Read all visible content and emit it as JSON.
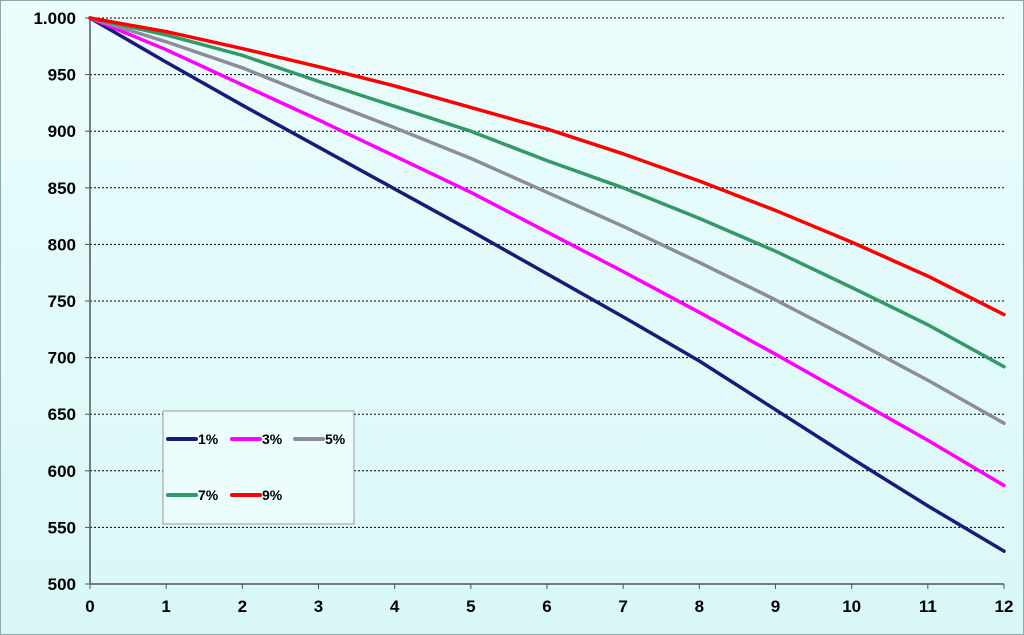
{
  "chart_data": {
    "type": "line",
    "title": "",
    "xlabel": "",
    "ylabel": "",
    "xlim": [
      0,
      12
    ],
    "ylim": [
      500,
      1000
    ],
    "grid": true,
    "legend_placement": "lower-left",
    "x": [
      0,
      1,
      2,
      3,
      4,
      5,
      6,
      7,
      8,
      9,
      10,
      11,
      12
    ],
    "x_tick_labels": [
      "0",
      "1",
      "2",
      "3",
      "4",
      "5",
      "6",
      "7",
      "8",
      "9",
      "10",
      "11",
      "12"
    ],
    "y_ticks": [
      500,
      550,
      600,
      650,
      700,
      750,
      800,
      850,
      900,
      950,
      1000
    ],
    "y_tick_labels": [
      "500",
      "550",
      "600",
      "650",
      "700",
      "750",
      "800",
      "850",
      "900",
      "950",
      "1.000"
    ],
    "series": [
      {
        "name": "1%",
        "color": "#1a1a7a",
        "values": [
          1000,
          961,
          923,
          886,
          849,
          812,
          774,
          736,
          697,
          654,
          611,
          569,
          529
        ]
      },
      {
        "name": "3%",
        "color": "#ff00ff",
        "values": [
          1000,
          972,
          941,
          910,
          878,
          846,
          811,
          776,
          740,
          703,
          665,
          627,
          587
        ]
      },
      {
        "name": "5%",
        "color": "#8c8c9c",
        "values": [
          1000,
          979,
          956,
          929,
          903,
          876,
          846,
          816,
          784,
          751,
          716,
          680,
          642
        ]
      },
      {
        "name": "7%",
        "color": "#339966",
        "values": [
          1000,
          985,
          967,
          944,
          922,
          900,
          874,
          850,
          823,
          794,
          762,
          729,
          692
        ]
      },
      {
        "name": "9%",
        "color": "#ff0000",
        "values": [
          1000,
          988,
          973,
          957,
          940,
          921,
          902,
          880,
          856,
          830,
          802,
          772,
          738
        ]
      }
    ]
  }
}
